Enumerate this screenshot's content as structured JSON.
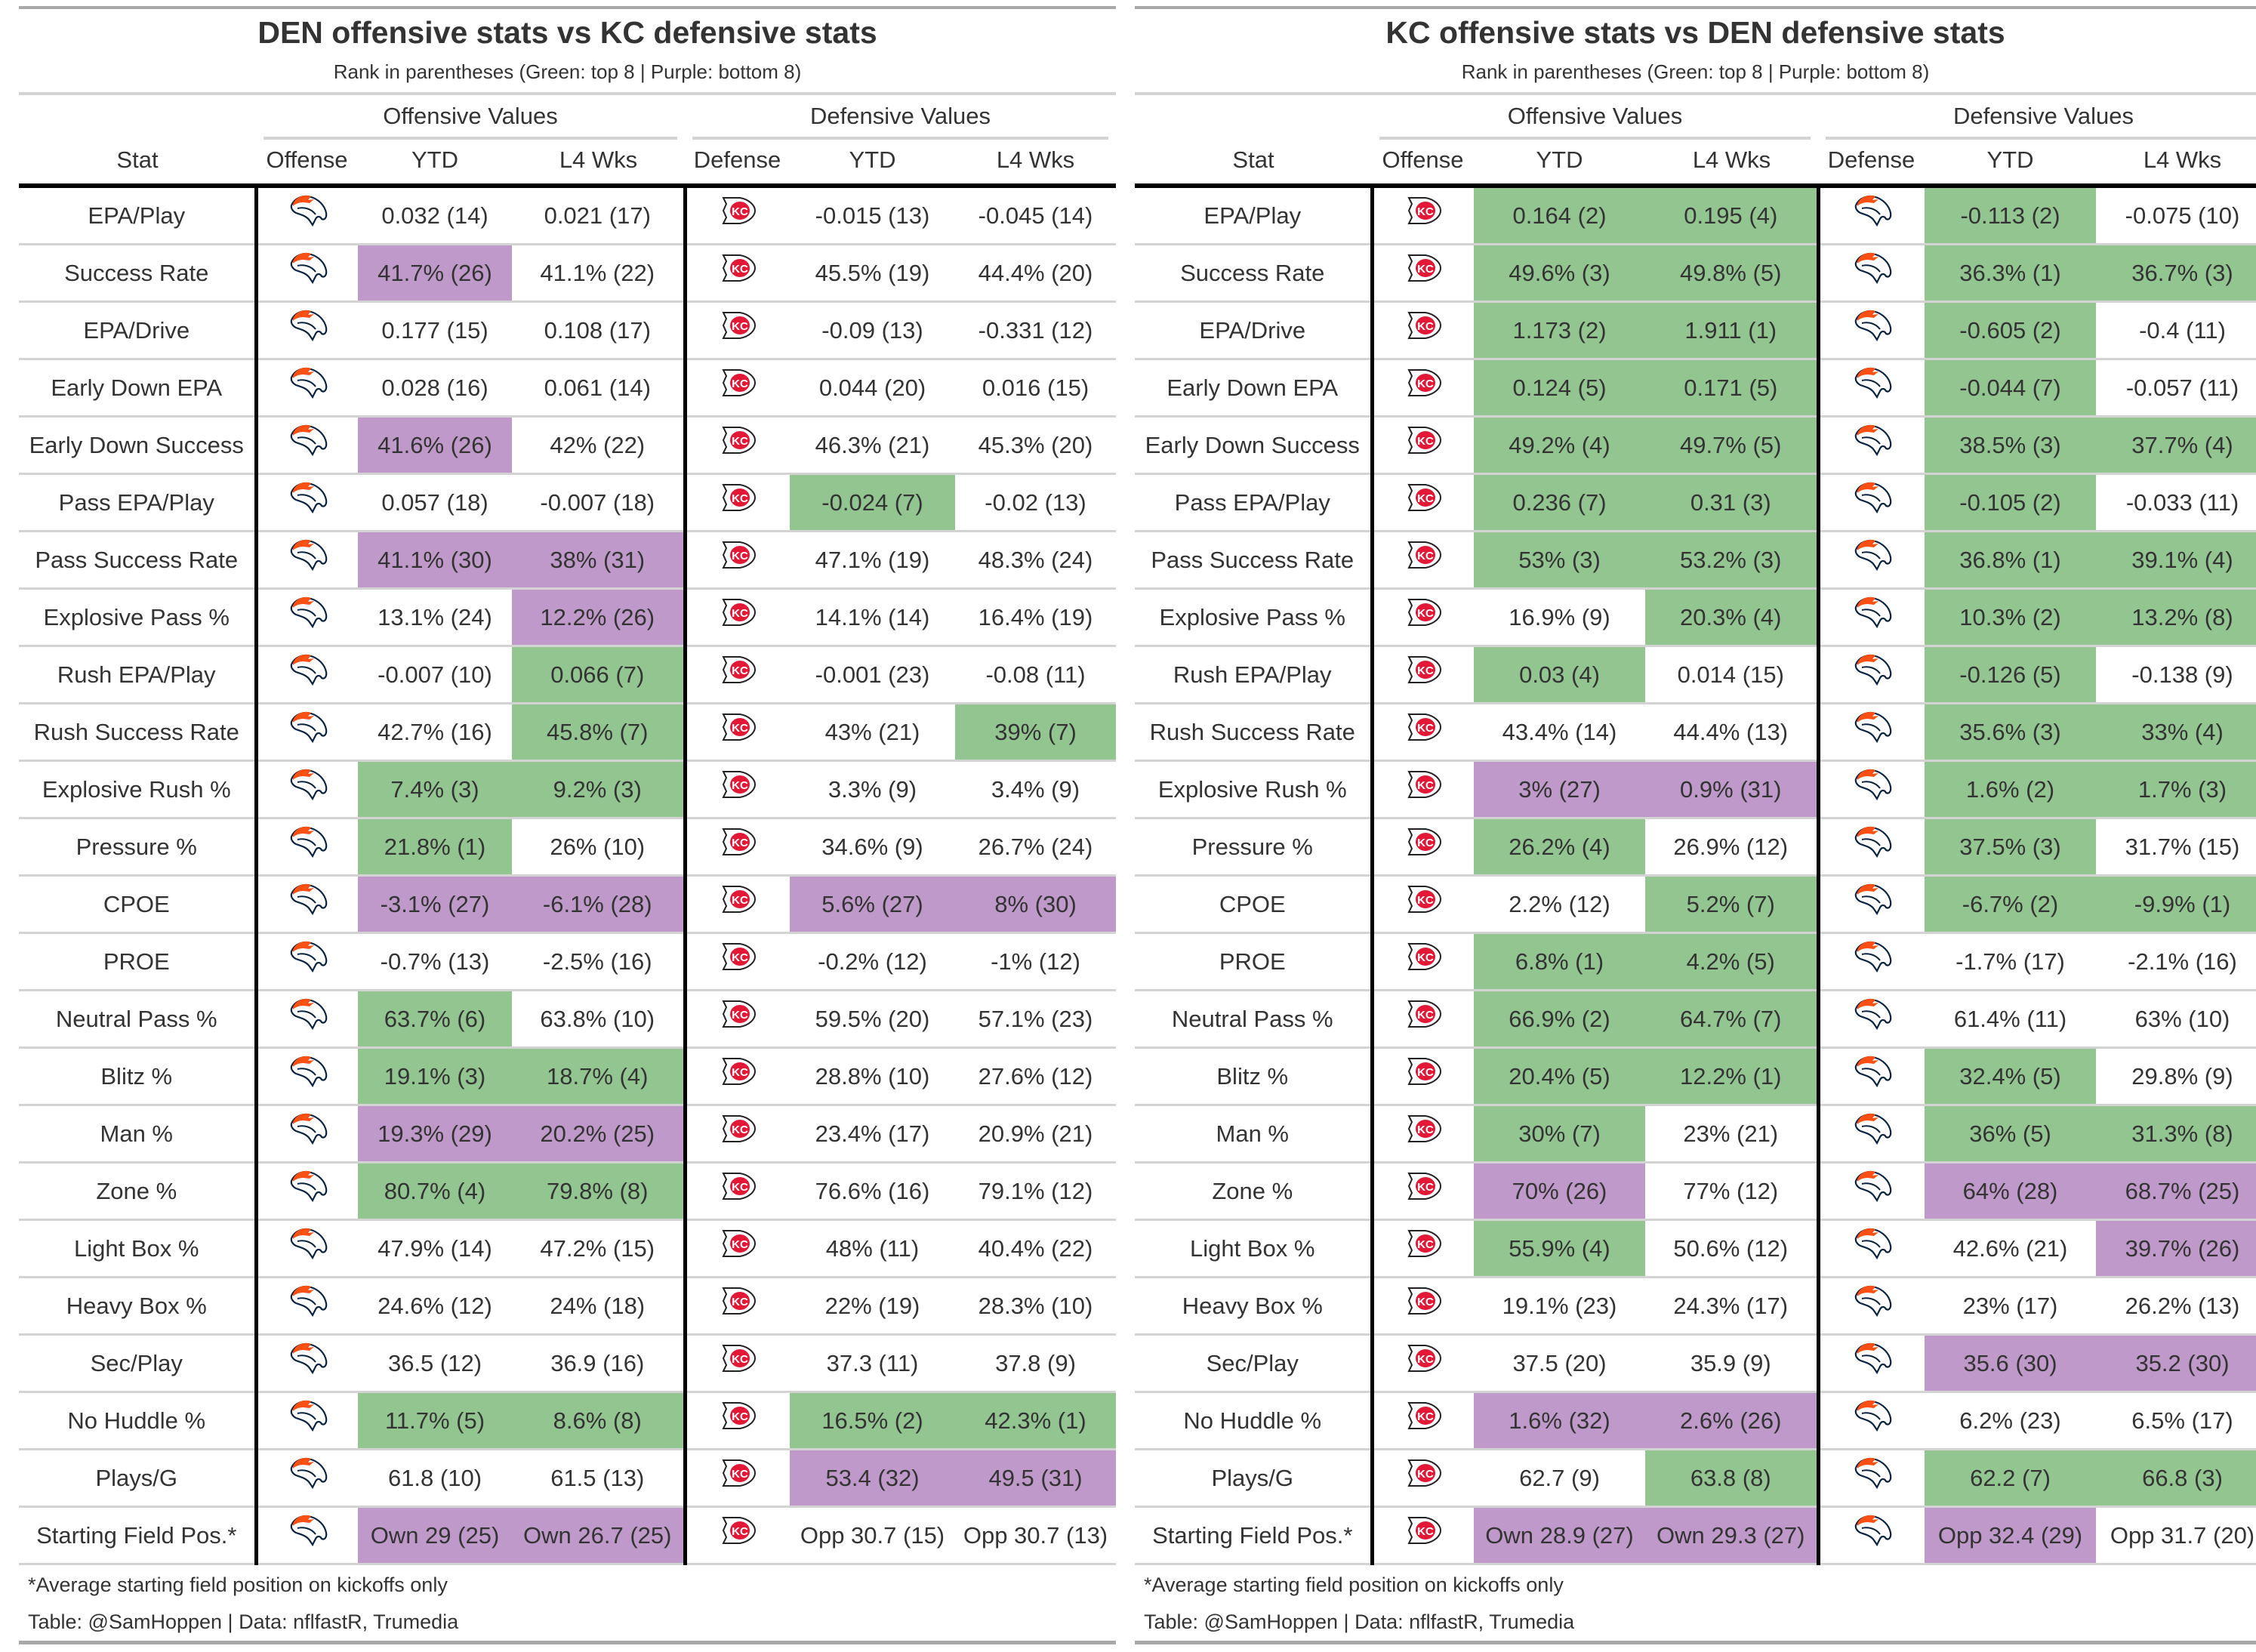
{
  "colors": {
    "green": "#93c591",
    "purple": "#bf99c9"
  },
  "common": {
    "subtitle": "Rank in parentheses (Green: top 8 | Purple: bottom 8)",
    "spanner_off": "Offensive Values",
    "spanner_def": "Defensive Values",
    "col_stat": "Stat",
    "col_offense": "Offense",
    "col_defense": "Defense",
    "col_ytd": "YTD",
    "col_l4": "L4 Wks",
    "footnote": "*Average starting field position on kickoffs only",
    "credit": "Table: @SamHoppen | Data: nflfastR, Trumedia"
  },
  "stats": [
    "EPA/Play",
    "Success Rate",
    "EPA/Drive",
    "Early Down EPA",
    "Early Down Success",
    "Pass EPA/Play",
    "Pass Success Rate",
    "Explosive Pass %",
    "Rush EPA/Play",
    "Rush Success Rate",
    "Explosive Rush %",
    "Pressure %",
    "CPOE",
    "PROE",
    "Neutral Pass %",
    "Blitz %",
    "Man %",
    "Zone %",
    "Light Box %",
    "Heavy Box %",
    "Sec/Play",
    "No Huddle %",
    "Plays/G",
    "Starting Field Pos.*"
  ],
  "panels": [
    {
      "title": "DEN offensive stats vs KC defensive stats",
      "offense_logo": "broncos-logo",
      "defense_logo": "chiefs-logo",
      "rows": [
        {
          "v": [
            "0.032 (14)",
            "0.021 (17)",
            "-0.015 (13)",
            "-0.045 (14)"
          ],
          "c": "----"
        },
        {
          "v": [
            "41.7% (26)",
            "41.1% (22)",
            "45.5% (19)",
            "44.4% (20)"
          ],
          "c": "p---"
        },
        {
          "v": [
            "0.177 (15)",
            "0.108 (17)",
            "-0.09 (13)",
            "-0.331 (12)"
          ],
          "c": "----"
        },
        {
          "v": [
            "0.028 (16)",
            "0.061 (14)",
            "0.044 (20)",
            "0.016 (15)"
          ],
          "c": "----"
        },
        {
          "v": [
            "41.6% (26)",
            "42% (22)",
            "46.3% (21)",
            "45.3% (20)"
          ],
          "c": "p---"
        },
        {
          "v": [
            "0.057 (18)",
            "-0.007 (18)",
            "-0.024 (7)",
            "-0.02 (13)"
          ],
          "c": "--g-"
        },
        {
          "v": [
            "41.1% (30)",
            "38% (31)",
            "47.1% (19)",
            "48.3% (24)"
          ],
          "c": "pp--"
        },
        {
          "v": [
            "13.1% (24)",
            "12.2% (26)",
            "14.1% (14)",
            "16.4% (19)"
          ],
          "c": "-p--"
        },
        {
          "v": [
            "-0.007 (10)",
            "0.066 (7)",
            "-0.001 (23)",
            "-0.08 (11)"
          ],
          "c": "-g--"
        },
        {
          "v": [
            "42.7% (16)",
            "45.8% (7)",
            "43% (21)",
            "39% (7)"
          ],
          "c": "-g-g"
        },
        {
          "v": [
            "7.4% (3)",
            "9.2% (3)",
            "3.3% (9)",
            "3.4% (9)"
          ],
          "c": "gg--"
        },
        {
          "v": [
            "21.8% (1)",
            "26% (10)",
            "34.6% (9)",
            "26.7% (24)"
          ],
          "c": "g---"
        },
        {
          "v": [
            "-3.1% (27)",
            "-6.1% (28)",
            "5.6% (27)",
            "8% (30)"
          ],
          "c": "pppp"
        },
        {
          "v": [
            "-0.7% (13)",
            "-2.5% (16)",
            "-0.2% (12)",
            "-1% (12)"
          ],
          "c": "----"
        },
        {
          "v": [
            "63.7% (6)",
            "63.8% (10)",
            "59.5% (20)",
            "57.1% (23)"
          ],
          "c": "g---"
        },
        {
          "v": [
            "19.1% (3)",
            "18.7% (4)",
            "28.8% (10)",
            "27.6% (12)"
          ],
          "c": "gg--"
        },
        {
          "v": [
            "19.3% (29)",
            "20.2% (25)",
            "23.4% (17)",
            "20.9% (21)"
          ],
          "c": "pp--"
        },
        {
          "v": [
            "80.7% (4)",
            "79.8% (8)",
            "76.6% (16)",
            "79.1% (12)"
          ],
          "c": "gg--"
        },
        {
          "v": [
            "47.9% (14)",
            "47.2% (15)",
            "48% (11)",
            "40.4% (22)"
          ],
          "c": "----"
        },
        {
          "v": [
            "24.6% (12)",
            "24% (18)",
            "22% (19)",
            "28.3% (10)"
          ],
          "c": "----"
        },
        {
          "v": [
            "36.5 (12)",
            "36.9 (16)",
            "37.3 (11)",
            "37.8 (9)"
          ],
          "c": "----"
        },
        {
          "v": [
            "11.7% (5)",
            "8.6% (8)",
            "16.5% (2)",
            "42.3% (1)"
          ],
          "c": "gggg"
        },
        {
          "v": [
            "61.8 (10)",
            "61.5 (13)",
            "53.4 (32)",
            "49.5 (31)"
          ],
          "c": "--pp"
        },
        {
          "v": [
            "Own 29 (25)",
            "Own 26.7 (25)",
            "Opp 30.7 (15)",
            "Opp 30.7 (13)"
          ],
          "c": "pp--"
        }
      ]
    },
    {
      "title": "KC offensive stats vs DEN defensive stats",
      "offense_logo": "chiefs-logo",
      "defense_logo": "broncos-logo",
      "rows": [
        {
          "v": [
            "0.164 (2)",
            "0.195 (4)",
            "-0.113 (2)",
            "-0.075 (10)"
          ],
          "c": "ggg-"
        },
        {
          "v": [
            "49.6% (3)",
            "49.8% (5)",
            "36.3% (1)",
            "36.7% (3)"
          ],
          "c": "gggg"
        },
        {
          "v": [
            "1.173 (2)",
            "1.911 (1)",
            "-0.605 (2)",
            "-0.4 (11)"
          ],
          "c": "ggg-"
        },
        {
          "v": [
            "0.124 (5)",
            "0.171 (5)",
            "-0.044 (7)",
            "-0.057 (11)"
          ],
          "c": "ggg-"
        },
        {
          "v": [
            "49.2% (4)",
            "49.7% (5)",
            "38.5% (3)",
            "37.7% (4)"
          ],
          "c": "gggg"
        },
        {
          "v": [
            "0.236 (7)",
            "0.31 (3)",
            "-0.105 (2)",
            "-0.033 (11)"
          ],
          "c": "ggg-"
        },
        {
          "v": [
            "53% (3)",
            "53.2% (3)",
            "36.8% (1)",
            "39.1% (4)"
          ],
          "c": "gggg"
        },
        {
          "v": [
            "16.9% (9)",
            "20.3% (4)",
            "10.3% (2)",
            "13.2% (8)"
          ],
          "c": "-ggg"
        },
        {
          "v": [
            "0.03 (4)",
            "0.014 (15)",
            "-0.126 (5)",
            "-0.138 (9)"
          ],
          "c": "g-g-"
        },
        {
          "v": [
            "43.4% (14)",
            "44.4% (13)",
            "35.6% (3)",
            "33% (4)"
          ],
          "c": "--gg"
        },
        {
          "v": [
            "3% (27)",
            "0.9% (31)",
            "1.6% (2)",
            "1.7% (3)"
          ],
          "c": "ppgg"
        },
        {
          "v": [
            "26.2% (4)",
            "26.9% (12)",
            "37.5% (3)",
            "31.7% (15)"
          ],
          "c": "g-g-"
        },
        {
          "v": [
            "2.2% (12)",
            "5.2% (7)",
            "-6.7% (2)",
            "-9.9% (1)"
          ],
          "c": "-ggg"
        },
        {
          "v": [
            "6.8% (1)",
            "4.2% (5)",
            "-1.7% (17)",
            "-2.1% (16)"
          ],
          "c": "gg--"
        },
        {
          "v": [
            "66.9% (2)",
            "64.7% (7)",
            "61.4% (11)",
            "63% (10)"
          ],
          "c": "gg--"
        },
        {
          "v": [
            "20.4% (5)",
            "12.2% (1)",
            "32.4% (5)",
            "29.8% (9)"
          ],
          "c": "ggg-"
        },
        {
          "v": [
            "30% (7)",
            "23% (21)",
            "36% (5)",
            "31.3% (8)"
          ],
          "c": "g-gg"
        },
        {
          "v": [
            "70% (26)",
            "77% (12)",
            "64% (28)",
            "68.7% (25)"
          ],
          "c": "p-pp"
        },
        {
          "v": [
            "55.9% (4)",
            "50.6% (12)",
            "42.6% (21)",
            "39.7% (26)"
          ],
          "c": "g--p"
        },
        {
          "v": [
            "19.1% (23)",
            "24.3% (17)",
            "23% (17)",
            "26.2% (13)"
          ],
          "c": "----"
        },
        {
          "v": [
            "37.5 (20)",
            "35.9 (9)",
            "35.6 (30)",
            "35.2 (30)"
          ],
          "c": "--pp"
        },
        {
          "v": [
            "1.6% (32)",
            "2.6% (26)",
            "6.2% (23)",
            "6.5% (17)"
          ],
          "c": "pp--"
        },
        {
          "v": [
            "62.7 (9)",
            "63.8 (8)",
            "62.2 (7)",
            "66.8 (3)"
          ],
          "c": "-ggg"
        },
        {
          "v": [
            "Own 28.9 (27)",
            "Own 29.3 (27)",
            "Opp 32.4 (29)",
            "Opp 31.7 (20)"
          ],
          "c": "ppp-"
        }
      ]
    }
  ]
}
